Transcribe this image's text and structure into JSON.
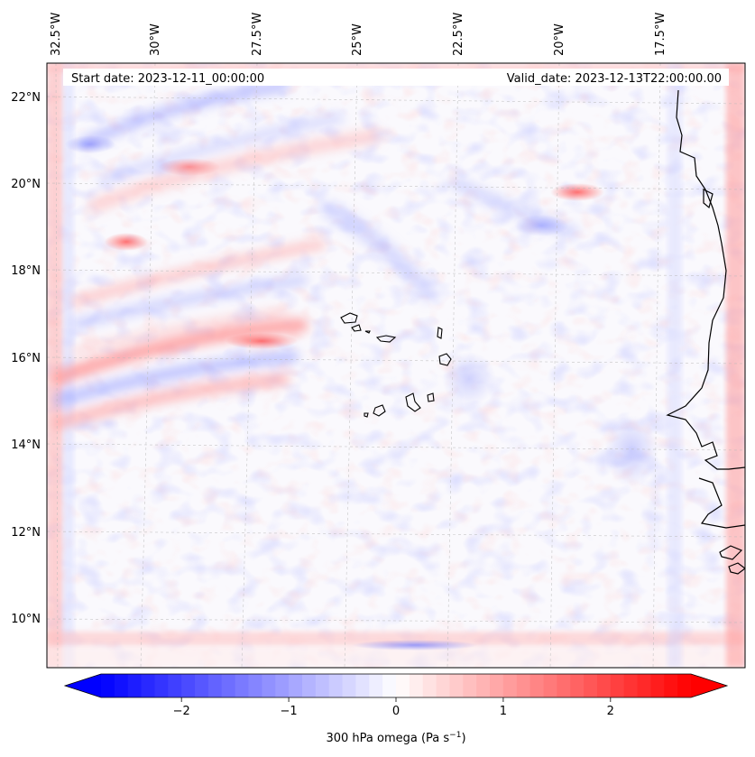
{
  "map": {
    "start_date": "Start date: 2023-12-11_00:00:00",
    "valid_date": "Valid_date: 2023-12-13T22:00:00.00",
    "lon_labels": [
      "32.5°W",
      "30°W",
      "27.5°W",
      "25°W",
      "22.5°W",
      "20°W",
      "17.5°W"
    ],
    "lat_labels": [
      "22°N",
      "20°N",
      "18°N",
      "16°N",
      "14°N",
      "12°N",
      "10°N"
    ],
    "field": "300 hPa omega",
    "extent": {
      "lon_min": -33.1,
      "lon_max": -15.6,
      "lat_min": 8.9,
      "lat_max": 22.8
    }
  },
  "colorbar": {
    "label_text": "300 hPa omega (Pa s",
    "label_exponent": "−1",
    "label_close": ")",
    "ticks": [
      "−2",
      "−1",
      "0",
      "1",
      "2"
    ],
    "tick_values": [
      -2,
      -1,
      0,
      1,
      2
    ],
    "range": [
      -2.75,
      2.75
    ],
    "low_color": "#0000ff",
    "mid_color": "#ffffff",
    "high_color": "#ff0000"
  }
}
